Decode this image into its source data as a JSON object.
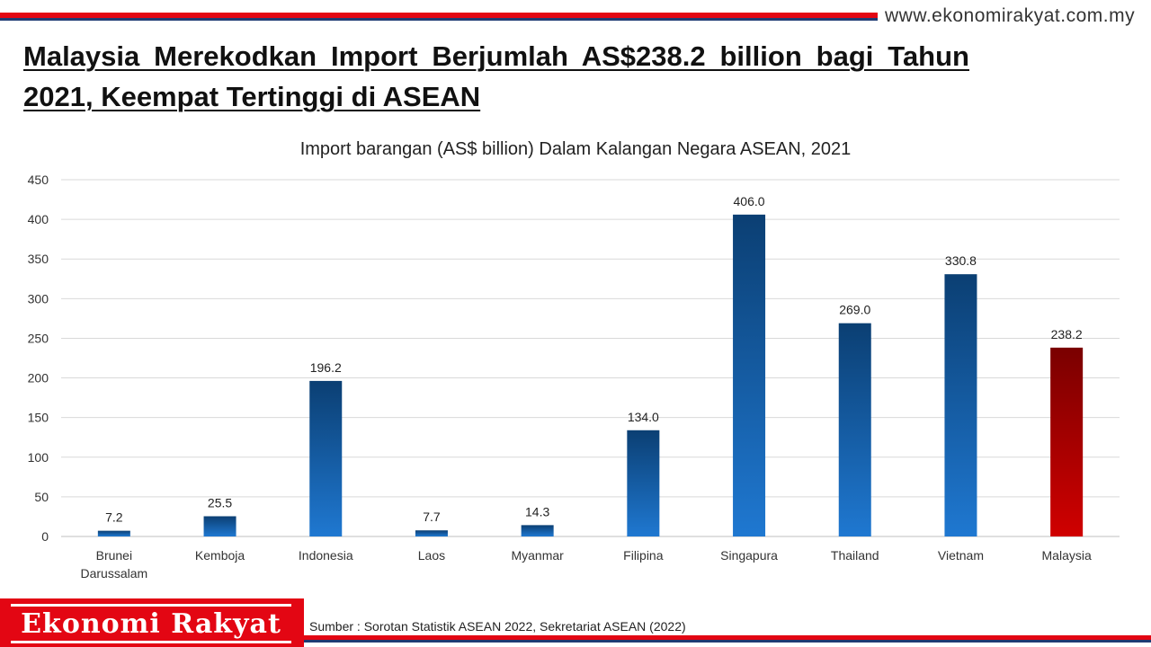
{
  "header": {
    "website": "www.ekonomirakyat.com.my",
    "headline": "Malaysia Merekodkan Import Berjumlah AS$238.2 billion bagi Tahun 2021, Keempat Tertinggi di ASEAN"
  },
  "colors": {
    "accent_red": "#e30613",
    "accent_navy": "#1f3b73",
    "bar_blue_top": "#0b3f73",
    "bar_blue_bottom": "#1f78d1",
    "highlight_top": "#7a0000",
    "highlight_bottom": "#d00000"
  },
  "chart_data": {
    "type": "bar",
    "title": "Import barangan (AS$ billion) Dalam Kalangan Negara ASEAN, 2021",
    "categories": [
      [
        "Brunei",
        "Darussalam"
      ],
      [
        "Kemboja"
      ],
      [
        "Indonesia"
      ],
      [
        "Laos"
      ],
      [
        "Myanmar"
      ],
      [
        "Filipina"
      ],
      [
        "Singapura"
      ],
      [
        "Thailand"
      ],
      [
        "Vietnam"
      ],
      [
        "Malaysia"
      ]
    ],
    "values": [
      7.2,
      25.5,
      196.2,
      7.7,
      14.3,
      134.0,
      406.0,
      269.0,
      330.8,
      238.2
    ],
    "value_labels": [
      "7.2",
      "25.5",
      "196.2",
      "7.7",
      "14.3",
      "134.0",
      "406.0",
      "269.0",
      "330.8",
      "238.2"
    ],
    "highlight_category": "Malaysia",
    "ylim": [
      0,
      450
    ],
    "yticks": [
      0,
      50,
      100,
      150,
      200,
      250,
      300,
      350,
      400,
      450
    ],
    "grid": true,
    "legend": "none"
  },
  "footer": {
    "brand": "Ekonomi Rakyat",
    "source": "Sumber : Sorotan Statistik ASEAN 2022, Sekretariat ASEAN (2022)"
  }
}
